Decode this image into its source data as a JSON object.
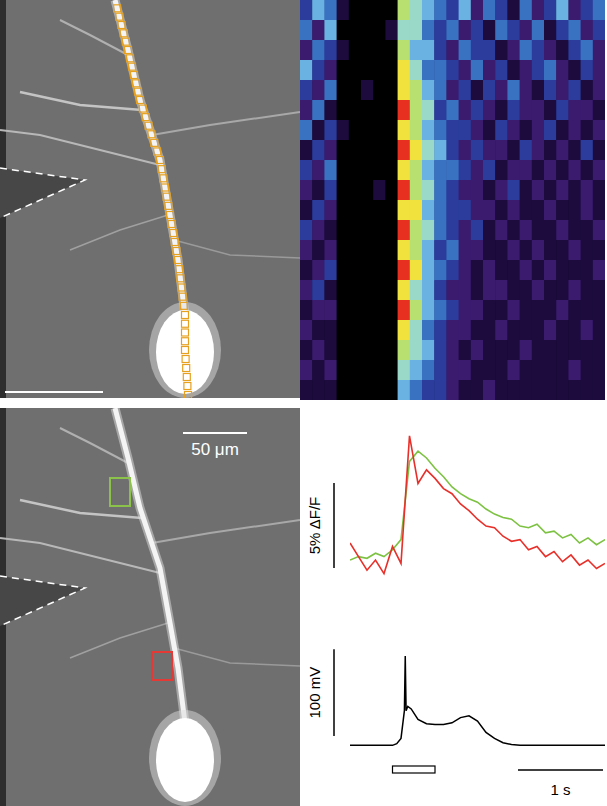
{
  "chart_data": [
    {
      "type": "heatmap",
      "tick_labels": false,
      "color_range": [
        0,
        9
      ],
      "cells": [
        [
          3,
          5,
          4,
          1,
          0,
          0,
          0,
          0,
          7,
          6,
          5,
          4,
          3,
          5,
          2,
          4,
          3,
          1,
          4,
          2,
          3,
          5,
          2,
          3,
          4
        ],
        [
          4,
          2,
          5,
          0,
          0,
          0,
          0,
          1,
          6,
          6,
          4,
          3,
          4,
          2,
          3,
          1,
          4,
          3,
          2,
          4,
          1,
          3,
          4,
          2,
          3
        ],
        [
          2,
          4,
          3,
          1,
          0,
          0,
          0,
          0,
          7,
          5,
          5,
          3,
          2,
          4,
          3,
          3,
          1,
          2,
          4,
          3,
          2,
          1,
          3,
          4,
          2
        ],
        [
          5,
          3,
          2,
          0,
          0,
          0,
          0,
          0,
          8,
          6,
          4,
          4,
          3,
          2,
          4,
          2,
          3,
          1,
          2,
          3,
          4,
          2,
          1,
          3,
          2
        ],
        [
          3,
          2,
          4,
          0,
          0,
          1,
          0,
          0,
          8,
          7,
          5,
          4,
          2,
          3,
          1,
          3,
          2,
          4,
          2,
          1,
          3,
          2,
          3,
          1,
          2
        ],
        [
          2,
          4,
          1,
          0,
          0,
          0,
          0,
          0,
          9,
          7,
          6,
          3,
          4,
          2,
          3,
          2,
          1,
          3,
          2,
          2,
          1,
          3,
          2,
          2,
          1
        ],
        [
          4,
          1,
          3,
          1,
          0,
          0,
          0,
          0,
          8,
          7,
          5,
          4,
          3,
          3,
          2,
          1,
          3,
          2,
          1,
          2,
          3,
          1,
          2,
          1,
          2
        ],
        [
          1,
          3,
          2,
          0,
          0,
          0,
          0,
          0,
          9,
          8,
          6,
          5,
          3,
          2,
          3,
          2,
          2,
          1,
          3,
          2,
          1,
          2,
          1,
          3,
          1
        ],
        [
          3,
          2,
          4,
          0,
          0,
          0,
          0,
          0,
          8,
          7,
          5,
          4,
          4,
          3,
          2,
          3,
          1,
          2,
          2,
          1,
          2,
          1,
          2,
          1,
          2
        ],
        [
          2,
          1,
          3,
          0,
          0,
          0,
          1,
          0,
          9,
          7,
          6,
          4,
          3,
          2,
          2,
          1,
          2,
          3,
          1,
          2,
          1,
          2,
          1,
          2,
          1
        ],
        [
          1,
          3,
          2,
          0,
          0,
          0,
          0,
          0,
          8,
          8,
          5,
          4,
          3,
          3,
          2,
          2,
          1,
          2,
          1,
          1,
          2,
          1,
          1,
          2,
          1
        ],
        [
          3,
          2,
          1,
          0,
          0,
          0,
          0,
          0,
          9,
          7,
          6,
          4,
          3,
          2,
          3,
          1,
          2,
          1,
          2,
          1,
          1,
          2,
          1,
          1,
          2
        ],
        [
          2,
          1,
          2,
          0,
          0,
          0,
          0,
          0,
          8,
          7,
          5,
          3,
          4,
          2,
          2,
          1,
          1,
          2,
          1,
          2,
          1,
          1,
          2,
          1,
          1
        ],
        [
          1,
          2,
          3,
          0,
          0,
          0,
          0,
          0,
          9,
          8,
          5,
          4,
          3,
          2,
          1,
          2,
          1,
          1,
          2,
          1,
          2,
          1,
          1,
          1,
          2
        ],
        [
          2,
          3,
          1,
          0,
          0,
          0,
          0,
          0,
          8,
          6,
          5,
          3,
          2,
          2,
          1,
          2,
          2,
          1,
          1,
          2,
          1,
          1,
          2,
          1,
          1
        ],
        [
          1,
          2,
          2,
          0,
          0,
          0,
          0,
          0,
          9,
          7,
          5,
          4,
          3,
          2,
          2,
          1,
          1,
          2,
          1,
          1,
          1,
          2,
          1,
          1,
          1
        ],
        [
          2,
          1,
          1,
          0,
          0,
          0,
          0,
          0,
          8,
          6,
          4,
          3,
          2,
          2,
          1,
          1,
          2,
          1,
          1,
          1,
          2,
          1,
          1,
          2,
          1
        ],
        [
          1,
          2,
          1,
          0,
          0,
          0,
          0,
          0,
          7,
          6,
          5,
          3,
          2,
          1,
          2,
          1,
          1,
          1,
          2,
          1,
          1,
          1,
          1,
          1,
          1
        ],
        [
          2,
          1,
          2,
          0,
          0,
          0,
          0,
          0,
          6,
          5,
          4,
          3,
          2,
          2,
          1,
          1,
          1,
          2,
          1,
          1,
          1,
          1,
          2,
          1,
          1
        ],
        [
          1,
          1,
          1,
          0,
          0,
          0,
          0,
          0,
          5,
          4,
          3,
          3,
          2,
          1,
          1,
          2,
          1,
          1,
          1,
          1,
          1,
          1,
          1,
          1,
          1
        ]
      ]
    },
    {
      "type": "line",
      "tick_labels": false,
      "x": [
        0,
        0.1,
        0.2,
        0.3,
        0.4,
        0.5,
        0.6,
        0.7,
        0.8,
        0.9,
        1.0,
        1.1,
        1.2,
        1.3,
        1.4,
        1.5,
        1.6,
        1.7,
        1.8,
        1.9,
        2.0,
        2.1,
        2.2,
        2.3,
        2.4,
        2.5,
        2.6,
        2.7,
        2.8,
        2.9,
        3.0
      ],
      "xlim": [
        0,
        3
      ],
      "ylim": [
        -1,
        9
      ],
      "series": [
        {
          "color": "#7dc242",
          "values": [
            1.0,
            1.2,
            1.1,
            1.4,
            1.2,
            1.6,
            2.2,
            6.8,
            7.4,
            7.0,
            6.4,
            5.9,
            5.3,
            4.9,
            4.6,
            4.4,
            4.0,
            3.7,
            3.5,
            3.4,
            3.0,
            2.9,
            3.1,
            2.6,
            2.7,
            2.3,
            2.5,
            2.0,
            2.3,
            1.9,
            2.2
          ]
        },
        {
          "color": "#e8302a",
          "values": [
            2.0,
            1.2,
            0.4,
            1.0,
            0.2,
            1.8,
            0.8,
            8.3,
            5.5,
            6.3,
            5.8,
            5.2,
            4.9,
            4.3,
            3.9,
            3.4,
            3.0,
            2.9,
            2.4,
            2.1,
            2.2,
            1.6,
            1.8,
            1.2,
            1.5,
            0.9,
            1.3,
            0.7,
            1.0,
            0.5,
            0.8
          ]
        }
      ],
      "scale_bars": [
        {
          "axis": "y",
          "value": 5,
          "label": "5% ΔF/F"
        }
      ]
    },
    {
      "type": "line",
      "tick_labels": false,
      "x": [
        0,
        0.5,
        0.55,
        0.6,
        0.64,
        0.65,
        0.66,
        0.68,
        0.72,
        0.8,
        0.9,
        1.0,
        1.1,
        1.2,
        1.3,
        1.4,
        1.5,
        1.6,
        1.7,
        1.8,
        1.9,
        2.0,
        3.0
      ],
      "xlim": [
        0,
        3
      ],
      "ylim": [
        -10,
        110
      ],
      "series": [
        {
          "color": "#000000",
          "values": [
            0,
            0,
            2,
            8,
            40,
            103,
            40,
            45,
            42,
            30,
            25,
            24,
            24,
            26,
            32,
            34,
            28,
            15,
            8,
            3,
            1,
            0,
            0
          ]
        }
      ],
      "stimulus": [
        0.5,
        1.0
      ],
      "scale_bars": [
        {
          "axis": "y",
          "value": 100,
          "label": "100 mV"
        },
        {
          "axis": "x",
          "value": 1,
          "label": "1 s"
        }
      ]
    }
  ],
  "images": {
    "scale_bar_label": "50 μm",
    "scan_line_color": "#e6a01e",
    "roi_colors": [
      "#8bc34a",
      "#e53935"
    ]
  }
}
